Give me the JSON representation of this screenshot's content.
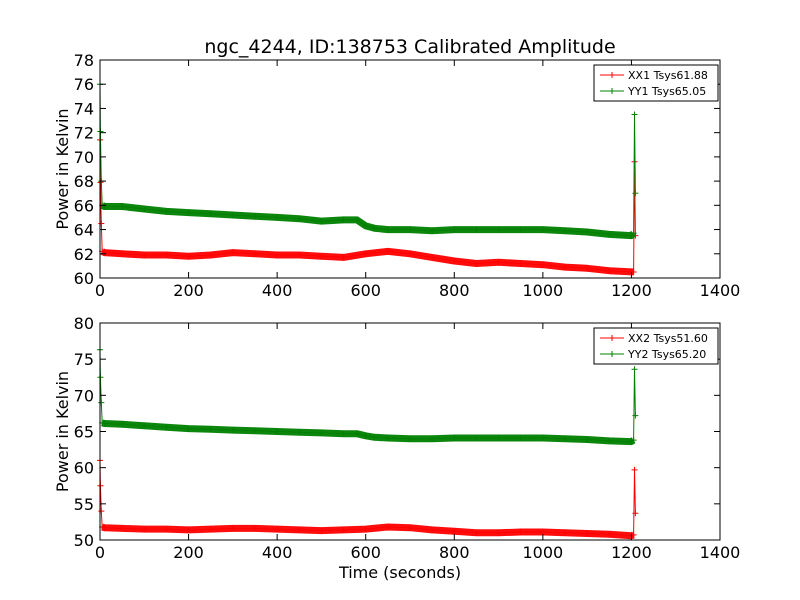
{
  "figure": {
    "title": "ngc_4244, ID:138753 Calibrated Amplitude"
  },
  "chart_data": [
    {
      "type": "line",
      "title": "ngc_4244, ID:138753 Calibrated Amplitude",
      "xlabel": "",
      "ylabel": "Power in Kelvin",
      "xlim": [
        0,
        1400
      ],
      "ylim": [
        60,
        78
      ],
      "xticks": [
        0,
        200,
        400,
        600,
        800,
        1000,
        1200,
        1400
      ],
      "yticks": [
        60,
        62,
        64,
        66,
        68,
        70,
        72,
        74,
        76,
        78
      ],
      "grid": false,
      "legend_position": "top-right",
      "series": [
        {
          "name": "XX1 Tsys61.88",
          "color": "#ff0000",
          "x": [
            0,
            1,
            3,
            5,
            10,
            50,
            100,
            150,
            200,
            250,
            300,
            350,
            400,
            450,
            500,
            550,
            600,
            650,
            700,
            750,
            800,
            850,
            900,
            950,
            1000,
            1050,
            1100,
            1150,
            1200,
            1205,
            1207,
            1209
          ],
          "y": [
            71.4,
            67.9,
            64.5,
            62.2,
            62.1,
            62.0,
            61.9,
            61.9,
            61.8,
            61.9,
            62.1,
            62.0,
            61.9,
            61.9,
            61.8,
            61.7,
            62.0,
            62.2,
            62.0,
            61.7,
            61.4,
            61.2,
            61.3,
            61.2,
            61.1,
            60.9,
            60.8,
            60.6,
            60.5,
            60.5,
            69.6,
            63.5
          ]
        },
        {
          "name": "YY1 Tsys65.05",
          "color": "#008000",
          "x": [
            0,
            1,
            3,
            5,
            10,
            50,
            100,
            150,
            200,
            250,
            300,
            350,
            400,
            450,
            500,
            550,
            580,
            600,
            620,
            650,
            700,
            750,
            800,
            850,
            900,
            950,
            1000,
            1050,
            1100,
            1150,
            1200,
            1205,
            1207,
            1209
          ],
          "y": [
            76.0,
            72.1,
            68.0,
            66.0,
            65.9,
            65.9,
            65.7,
            65.5,
            65.4,
            65.3,
            65.2,
            65.1,
            65.0,
            64.9,
            64.7,
            64.8,
            64.8,
            64.3,
            64.1,
            64.0,
            64.0,
            63.9,
            64.0,
            64.0,
            64.0,
            64.0,
            64.0,
            63.9,
            63.8,
            63.6,
            63.5,
            63.7,
            73.5,
            67.0
          ]
        }
      ]
    },
    {
      "type": "line",
      "title": "",
      "xlabel": "Time (seconds)",
      "ylabel": "Power in Kelvin",
      "xlim": [
        0,
        1400
      ],
      "ylim": [
        50,
        80
      ],
      "xticks": [
        0,
        200,
        400,
        600,
        800,
        1000,
        1200,
        1400
      ],
      "yticks": [
        50,
        55,
        60,
        65,
        70,
        75,
        80
      ],
      "grid": false,
      "legend_position": "top-right",
      "series": [
        {
          "name": "XX2 Tsys51.60",
          "color": "#ff0000",
          "x": [
            0,
            1,
            3,
            5,
            10,
            50,
            100,
            150,
            200,
            250,
            300,
            350,
            400,
            450,
            500,
            550,
            600,
            650,
            700,
            750,
            800,
            850,
            900,
            950,
            1000,
            1050,
            1100,
            1150,
            1200,
            1205,
            1207,
            1209
          ],
          "y": [
            61.0,
            57.5,
            54.0,
            51.8,
            51.7,
            51.6,
            51.5,
            51.5,
            51.4,
            51.5,
            51.6,
            51.6,
            51.5,
            51.4,
            51.3,
            51.4,
            51.5,
            51.8,
            51.7,
            51.4,
            51.2,
            51.0,
            51.0,
            51.1,
            51.1,
            51.0,
            50.9,
            50.8,
            50.6,
            50.7,
            59.7,
            53.7
          ]
        },
        {
          "name": "YY2 Tsys65.20",
          "color": "#008000",
          "x": [
            0,
            1,
            3,
            5,
            10,
            50,
            100,
            150,
            200,
            250,
            300,
            350,
            400,
            450,
            500,
            550,
            580,
            600,
            620,
            650,
            700,
            750,
            800,
            850,
            900,
            950,
            1000,
            1050,
            1100,
            1150,
            1200,
            1205,
            1207,
            1209
          ],
          "y": [
            76.3,
            72.5,
            69.0,
            66.2,
            66.1,
            66.0,
            65.8,
            65.6,
            65.4,
            65.3,
            65.2,
            65.1,
            65.0,
            64.9,
            64.8,
            64.7,
            64.7,
            64.4,
            64.2,
            64.1,
            64.0,
            64.0,
            64.1,
            64.1,
            64.1,
            64.1,
            64.1,
            64.0,
            63.9,
            63.7,
            63.6,
            63.8,
            73.6,
            67.2
          ]
        }
      ]
    }
  ]
}
